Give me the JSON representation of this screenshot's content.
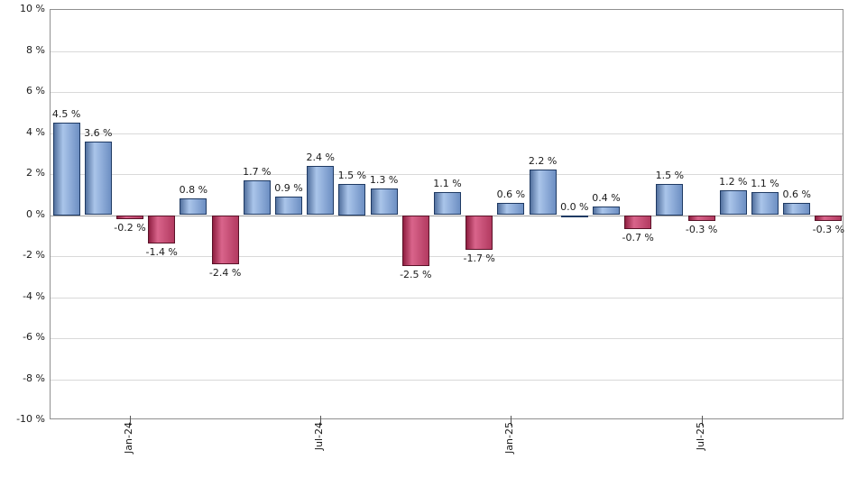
{
  "chart_data": {
    "type": "bar",
    "title": "",
    "xlabel": "",
    "ylabel": "",
    "ylim": [
      -10,
      10
    ],
    "y_step": 2,
    "grid": true,
    "legend": false,
    "values": [
      4.5,
      3.6,
      -0.2,
      -1.4,
      0.8,
      -2.4,
      1.7,
      0.9,
      2.4,
      1.5,
      1.3,
      -2.5,
      1.1,
      -1.7,
      0.6,
      2.2,
      0.0,
      0.4,
      -0.7,
      1.5,
      -0.3,
      1.2,
      1.1,
      0.6,
      -0.3
    ],
    "bar_labels": [
      "4.5 %",
      "3.6 %",
      "-0.2 %",
      "-1.4 %",
      "0.8 %",
      "-2.4 %",
      "1.7 %",
      "0.9 %",
      "2.4 %",
      "1.5 %",
      "1.3 %",
      "-2.5 %",
      "1.1 %",
      "-1.7 %",
      "0.6 %",
      "2.2 %",
      "0.0 %",
      "0.4 %",
      "-0.7 %",
      "1.5 %",
      "-0.3 %",
      "1.2 %",
      "1.1 %",
      "0.6 %",
      "-0.3 %"
    ],
    "x_ticks": [
      {
        "label": "Jan-24",
        "bar_index": 2
      },
      {
        "label": "Jul-24",
        "bar_index": 8
      },
      {
        "label": "Jan-25",
        "bar_index": 14
      },
      {
        "label": "Jul-25",
        "bar_index": 20
      }
    ],
    "y_ticks": [
      "10 %",
      "8 %",
      "6 %",
      "4 %",
      "2 %",
      "0 %",
      "-2 %",
      "-4 %",
      "-6 %",
      "-8 %",
      "-10 %"
    ],
    "colors": {
      "positive_fill_start": "#53719f",
      "positive_fill_mid": "#aac5ea",
      "positive_fill_end": "#6d8fc3",
      "positive_border": "#1f3a63",
      "negative_fill_start": "#8f1f41",
      "negative_fill_mid": "#d9648b",
      "negative_fill_end": "#b23a60",
      "negative_border": "#5a1228",
      "gridline": "#d9d9d9",
      "zero_line": "#a0a0a0",
      "axis_border": "#8f8f8f",
      "label_text": "#1a1a1a"
    }
  }
}
